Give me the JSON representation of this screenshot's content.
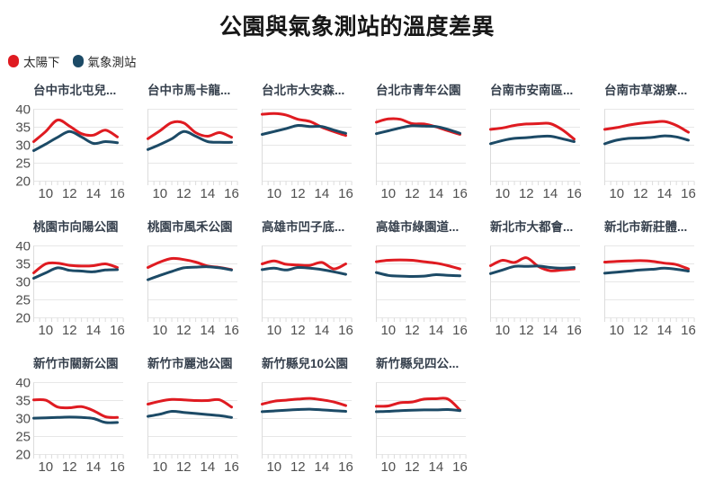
{
  "page": {
    "title": "公園與氣象測站的溫度差異"
  },
  "legend": {
    "items": [
      {
        "label": "太陽下",
        "color": "#df1b21"
      },
      {
        "label": "氣象測站",
        "color": "#1c4a66"
      }
    ]
  },
  "axes": {
    "y_ticks": [
      40,
      35,
      30,
      25,
      20
    ],
    "x_ticks": [
      10,
      12,
      14,
      16
    ],
    "y_range": [
      20,
      40
    ],
    "x_range": [
      9,
      16.5
    ],
    "grid": "horizontal",
    "minor_tick_step_hours": 0.5
  },
  "layout": {
    "rows": [
      6,
      6,
      4
    ],
    "legend_position": "top-left"
  },
  "hours": [
    9,
    10,
    11,
    12,
    13,
    14,
    15,
    16
  ],
  "chart_data": [
    {
      "type": "line",
      "title": "台中市北屯兒...",
      "series": [
        {
          "name": "太陽下",
          "values": [
            31,
            33.8,
            37,
            35.3,
            33.2,
            32.8,
            34.2,
            32.3
          ]
        },
        {
          "name": "氣象測站",
          "values": [
            28.5,
            30.3,
            32.2,
            33.8,
            32.3,
            30.5,
            31,
            30.7
          ]
        }
      ]
    },
    {
      "type": "line",
      "title": "台中市馬卡龍...",
      "series": [
        {
          "name": "太陽下",
          "values": [
            31.8,
            34,
            36.3,
            36.2,
            33.5,
            32.5,
            33.5,
            32.2
          ]
        },
        {
          "name": "氣象測站",
          "values": [
            28.8,
            30.2,
            31.8,
            33.8,
            32.5,
            31,
            30.8,
            30.8
          ]
        }
      ]
    },
    {
      "type": "line",
      "title": "台北市大安森...",
      "series": [
        {
          "name": "太陽下",
          "values": [
            38.6,
            38.8,
            38.4,
            37.2,
            36.6,
            35,
            33.8,
            32.7
          ]
        },
        {
          "name": "氣象測站",
          "values": [
            33,
            33.8,
            34.6,
            35.5,
            35.2,
            35.2,
            34.2,
            33.3
          ]
        }
      ]
    },
    {
      "type": "line",
      "title": "台北市青年公園",
      "series": [
        {
          "name": "太陽下",
          "values": [
            36.4,
            37.3,
            37.2,
            36,
            35.9,
            35.1,
            34,
            33
          ]
        },
        {
          "name": "氣象測站",
          "values": [
            33.2,
            34,
            34.8,
            35.4,
            35.3,
            35.2,
            34.4,
            33.3
          ]
        }
      ]
    },
    {
      "type": "line",
      "title": "台南市安南區...",
      "series": [
        {
          "name": "太陽下",
          "values": [
            34.4,
            34.8,
            35.5,
            35.9,
            36,
            36,
            34.3,
            31.7
          ]
        },
        {
          "name": "氣象測站",
          "values": [
            30.4,
            31.3,
            31.9,
            32.1,
            32.4,
            32.5,
            31.8,
            31
          ]
        }
      ]
    },
    {
      "type": "line",
      "title": "台南市草湖寮...",
      "series": [
        {
          "name": "太陽下",
          "values": [
            34.4,
            34.9,
            35.6,
            36.1,
            36.4,
            36.6,
            35.5,
            33.6
          ]
        },
        {
          "name": "氣象測站",
          "values": [
            30.4,
            31.4,
            31.9,
            32,
            32.2,
            32.6,
            32.3,
            31.4
          ]
        }
      ]
    },
    {
      "type": "line",
      "title": "桃園市向陽公園",
      "series": [
        {
          "name": "太陽下",
          "values": [
            32.5,
            35,
            35.2,
            34.6,
            34.4,
            34.5,
            35,
            34
          ]
        },
        {
          "name": "氣象測站",
          "values": [
            31,
            32.5,
            33.9,
            33.2,
            33,
            32.8,
            33.3,
            33.4
          ]
        }
      ]
    },
    {
      "type": "line",
      "title": "桃園市風禾公園",
      "series": [
        {
          "name": "太陽下",
          "values": [
            34,
            35.5,
            36.5,
            36.2,
            35.5,
            34.4,
            34,
            33.4
          ]
        },
        {
          "name": "氣象測站",
          "values": [
            30.6,
            31.8,
            32.9,
            33.9,
            34.1,
            34.2,
            33.9,
            33.3
          ]
        }
      ]
    },
    {
      "type": "line",
      "title": "高雄市凹子底...",
      "series": [
        {
          "name": "太陽下",
          "values": [
            35,
            35.8,
            34.9,
            34.7,
            34.6,
            35.4,
            33.6,
            35
          ]
        },
        {
          "name": "氣象測站",
          "values": [
            33.4,
            33.8,
            33.3,
            34,
            33.8,
            33.4,
            32.8,
            32.1
          ]
        }
      ]
    },
    {
      "type": "line",
      "title": "高雄市綠園道...",
      "series": [
        {
          "name": "太陽下",
          "values": [
            35.6,
            36,
            36.1,
            36,
            35.6,
            35.2,
            34.5,
            33.6
          ]
        },
        {
          "name": "氣象測站",
          "values": [
            32.6,
            31.8,
            31.6,
            31.5,
            31.6,
            32,
            31.8,
            31.7
          ]
        }
      ]
    },
    {
      "type": "line",
      "title": "新北市大都會...",
      "series": [
        {
          "name": "太陽下",
          "values": [
            34.5,
            36,
            35.4,
            36.7,
            34.3,
            33.1,
            33.3,
            33.6
          ]
        },
        {
          "name": "氣象測站",
          "values": [
            32.3,
            33.3,
            34.3,
            34.3,
            34.4,
            34,
            33.8,
            34
          ]
        }
      ]
    },
    {
      "type": "line",
      "title": "新北市新莊體...",
      "series": [
        {
          "name": "太陽下",
          "values": [
            35.5,
            35.7,
            35.8,
            35.9,
            35.7,
            35.2,
            34.8,
            33.6
          ]
        },
        {
          "name": "氣象測站",
          "values": [
            32.4,
            32.7,
            33,
            33.3,
            33.5,
            33.8,
            33.5,
            33
          ]
        }
      ]
    },
    {
      "type": "line",
      "title": "新竹市關新公園",
      "series": [
        {
          "name": "太陽下",
          "values": [
            35.2,
            35.1,
            33.2,
            33,
            33.3,
            32.2,
            30.5,
            30.3
          ]
        },
        {
          "name": "氣象測站",
          "values": [
            30.1,
            30.2,
            30.3,
            30.4,
            30.3,
            30,
            28.9,
            28.9
          ]
        }
      ]
    },
    {
      "type": "line",
      "title": "新竹市麗池公園",
      "series": [
        {
          "name": "太陽下",
          "values": [
            34,
            34.8,
            35.3,
            35.2,
            35,
            35,
            35.2,
            33.2
          ]
        },
        {
          "name": "氣象測站",
          "values": [
            30.6,
            31.2,
            32,
            31.7,
            31.4,
            31.1,
            30.8,
            30.3
          ]
        }
      ]
    },
    {
      "type": "line",
      "title": "新竹縣兒10公園",
      "series": [
        {
          "name": "太陽下",
          "values": [
            34,
            34.8,
            35.1,
            35.4,
            35.6,
            35.2,
            34.6,
            33.6
          ]
        },
        {
          "name": "氣象測站",
          "values": [
            31.9,
            32.1,
            32.3,
            32.5,
            32.6,
            32.4,
            32.2,
            32
          ]
        }
      ]
    },
    {
      "type": "line",
      "title": "新竹縣兒四公...",
      "series": [
        {
          "name": "太陽下",
          "values": [
            33.4,
            33.5,
            34.4,
            34.6,
            35.4,
            35.5,
            35.4,
            32.4
          ]
        },
        {
          "name": "氣象測站",
          "values": [
            31.9,
            32,
            32.2,
            32.3,
            32.4,
            32.4,
            32.5,
            32.2
          ]
        }
      ]
    }
  ]
}
